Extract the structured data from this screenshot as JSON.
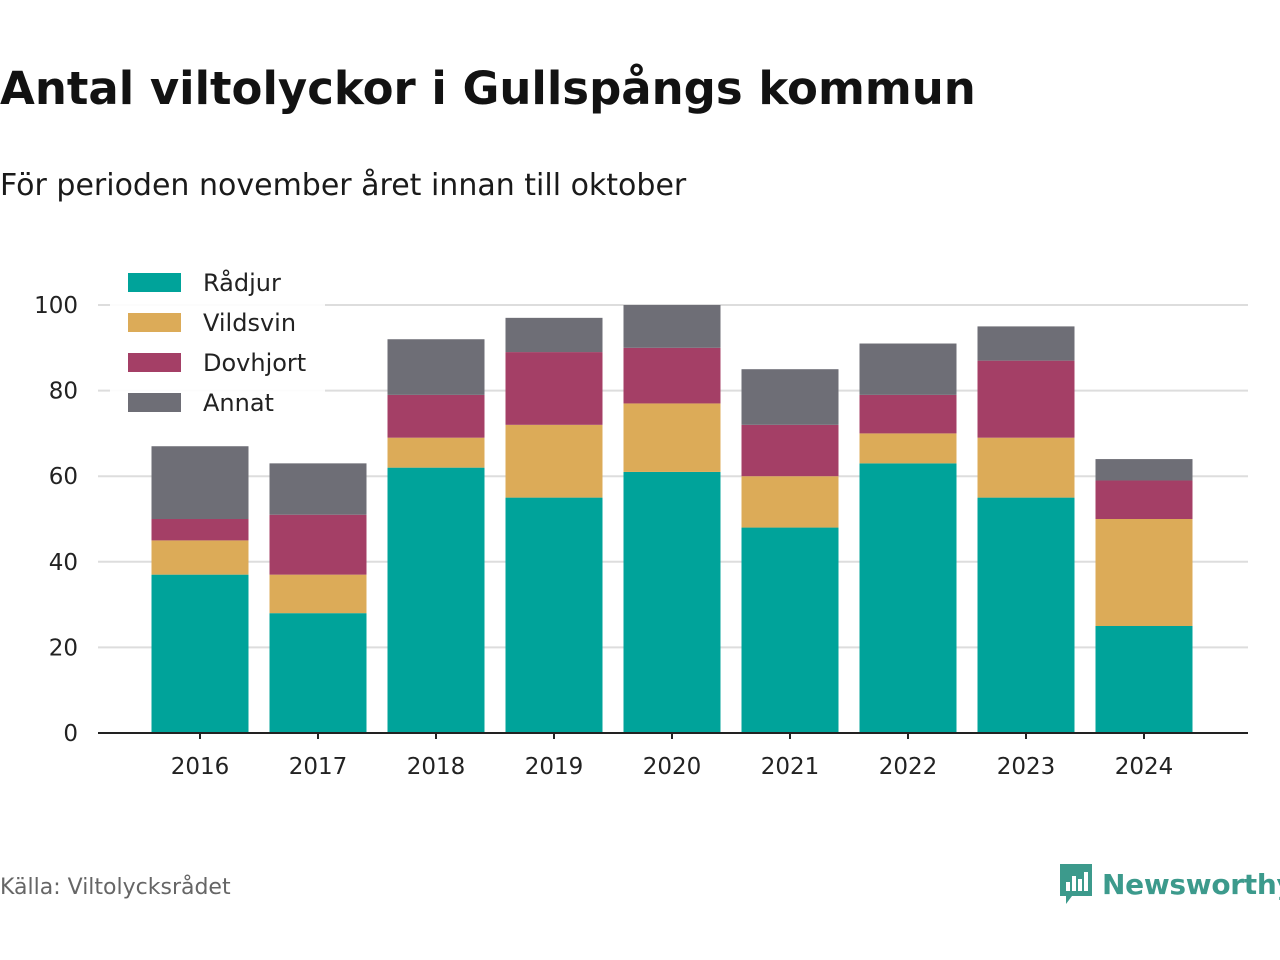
{
  "title": "Antal viltolyckor i Gullspångs kommun",
  "subtitle": "För perioden november året innan till oktober",
  "source": "Källa: Viltolycksrådet",
  "brand": {
    "name": "Newsworthy",
    "color": "#3c9a8c",
    "icon": "bar-chart-speech-bubble-icon"
  },
  "chart_data": {
    "type": "bar",
    "stacked": true,
    "categories": [
      "2016",
      "2017",
      "2018",
      "2019",
      "2020",
      "2021",
      "2022",
      "2023",
      "2024"
    ],
    "series": [
      {
        "name": "Rådjur",
        "color": "#00a39a",
        "values": [
          37,
          28,
          62,
          55,
          61,
          48,
          63,
          55,
          25
        ]
      },
      {
        "name": "Vildsvin",
        "color": "#dcab58",
        "values": [
          8,
          9,
          7,
          17,
          16,
          12,
          7,
          14,
          25
        ]
      },
      {
        "name": "Dovhjort",
        "color": "#a43f66",
        "values": [
          5,
          14,
          10,
          17,
          13,
          12,
          9,
          18,
          9
        ]
      },
      {
        "name": "Annat",
        "color": "#6e6e76",
        "values": [
          17,
          12,
          13,
          8,
          10,
          13,
          12,
          8,
          5
        ]
      }
    ],
    "ylim": [
      0,
      100
    ],
    "yticks": [
      0,
      20,
      40,
      60,
      80,
      100
    ],
    "grid": true,
    "legend": "top-left",
    "xlabel": "",
    "ylabel": ""
  }
}
